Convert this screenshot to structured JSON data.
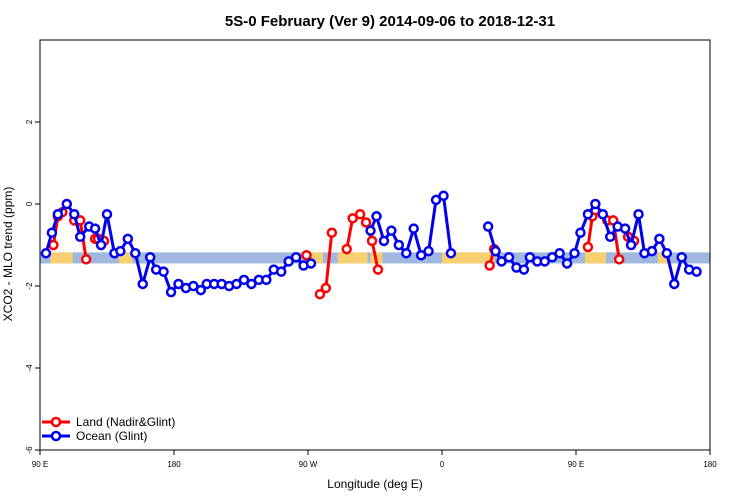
{
  "chart_data": {
    "type": "line",
    "title": "5S-0 February (Ver 9)   2014-09-06 to 2018-12-31",
    "xlabel": "Longitude (deg E)",
    "ylabel": "XCO2 - MLO trend (ppm)",
    "xlim": [
      90,
      540
    ],
    "ylim": [
      -6,
      4
    ],
    "xticks": [
      {
        "value": 90,
        "label": "90 E"
      },
      {
        "value": 180,
        "label": "180"
      },
      {
        "value": 270,
        "label": "90 W"
      },
      {
        "value": 360,
        "label": "0"
      },
      {
        "value": 450,
        "label": "90 E"
      },
      {
        "value": 540,
        "label": "180"
      }
    ],
    "yticks": [
      {
        "value": -6,
        "label": "-6"
      },
      {
        "value": -4,
        "label": "-4"
      },
      {
        "value": -2,
        "label": "-2"
      },
      {
        "value": 0,
        "label": "0"
      },
      {
        "value": 2,
        "label": "2"
      }
    ],
    "colors": {
      "land": "#ff0000",
      "ocean": "#0000ee",
      "band_ocean": "#a0b8e0",
      "band_land": "#f8d070"
    },
    "band": {
      "ymin": -1.45,
      "ymax": -1.18
    },
    "land_spans": [
      [
        97,
        112
      ],
      [
        143,
        152
      ],
      [
        270,
        280
      ],
      [
        290,
        310
      ],
      [
        312,
        320
      ],
      [
        360,
        395
      ],
      [
        456,
        470
      ],
      [
        505,
        512
      ]
    ],
    "legend": {
      "position": "bottom-left"
    },
    "series": [
      {
        "name": "Land (Nadir&Glint)",
        "color": "#ff0000",
        "segments": [
          [
            [
              99,
              -1.0
            ],
            [
              102,
              -0.3
            ],
            [
              105,
              -0.2
            ]
          ],
          [
            [
              113,
              -0.4
            ],
            [
              117,
              -0.4
            ],
            [
              121,
              -1.35
            ]
          ],
          [
            [
              127,
              -0.85
            ],
            [
              129,
              -0.85
            ],
            [
              133,
              -0.9
            ]
          ],
          [
            [
              269,
              -1.25
            ]
          ],
          [
            [
              278,
              -2.2
            ],
            [
              282,
              -2.05
            ],
            [
              286,
              -0.7
            ]
          ],
          [
            [
              296,
              -1.1
            ],
            [
              300,
              -0.35
            ],
            [
              305,
              -0.25
            ],
            [
              309,
              -0.45
            ],
            [
              313,
              -0.9
            ],
            [
              317,
              -1.6
            ]
          ],
          [
            [
              392,
              -1.5
            ],
            [
              395,
              -1.1
            ]
          ],
          [
            [
              458,
              -1.05
            ],
            [
              461,
              -0.3
            ],
            [
              463,
              -0.15
            ]
          ],
          [
            [
              471,
              -0.4
            ],
            [
              475,
              -0.4
            ],
            [
              479,
              -1.35
            ]
          ],
          [
            [
              485,
              -0.8
            ],
            [
              489,
              -0.9
            ]
          ]
        ]
      },
      {
        "name": "Ocean (Glint)",
        "color": "#0000ee",
        "segments": [
          [
            [
              94,
              -1.2
            ],
            [
              98,
              -0.7
            ],
            [
              102,
              -0.25
            ],
            [
              108,
              0.0
            ],
            [
              113,
              -0.25
            ],
            [
              117,
              -0.8
            ],
            [
              123,
              -0.55
            ],
            [
              127,
              -0.6
            ],
            [
              131,
              -1.0
            ],
            [
              135,
              -0.25
            ],
            [
              140,
              -1.2
            ],
            [
              144,
              -1.15
            ],
            [
              149,
              -0.85
            ],
            [
              154,
              -1.2
            ],
            [
              159,
              -1.95
            ],
            [
              164,
              -1.3
            ],
            [
              168,
              -1.6
            ],
            [
              173,
              -1.65
            ],
            [
              178,
              -2.15
            ],
            [
              183,
              -1.95
            ],
            [
              188,
              -2.05
            ],
            [
              193,
              -2.0
            ],
            [
              198,
              -2.1
            ],
            [
              202,
              -1.95
            ],
            [
              207,
              -1.95
            ],
            [
              212,
              -1.95
            ],
            [
              217,
              -2.0
            ],
            [
              222,
              -1.95
            ],
            [
              227,
              -1.85
            ],
            [
              232,
              -1.95
            ],
            [
              237,
              -1.85
            ],
            [
              242,
              -1.85
            ],
            [
              247,
              -1.6
            ],
            [
              252,
              -1.65
            ],
            [
              257,
              -1.4
            ],
            [
              262,
              -1.3
            ],
            [
              267,
              -1.5
            ],
            [
              272,
              -1.45
            ]
          ],
          [
            [
              312,
              -0.65
            ],
            [
              316,
              -0.3
            ],
            [
              321,
              -0.9
            ],
            [
              326,
              -0.65
            ],
            [
              331,
              -1.0
            ],
            [
              336,
              -1.2
            ],
            [
              341,
              -0.6
            ],
            [
              346,
              -1.25
            ],
            [
              351,
              -1.15
            ],
            [
              356,
              0.1
            ],
            [
              361,
              0.2
            ],
            [
              366,
              -1.2
            ]
          ],
          [
            [
              391,
              -0.55
            ],
            [
              396,
              -1.15
            ],
            [
              400,
              -1.4
            ],
            [
              405,
              -1.3
            ],
            [
              410,
              -1.55
            ],
            [
              415,
              -1.6
            ],
            [
              419,
              -1.3
            ],
            [
              424,
              -1.4
            ],
            [
              429,
              -1.4
            ],
            [
              434,
              -1.3
            ],
            [
              439,
              -1.2
            ],
            [
              444,
              -1.45
            ],
            [
              449,
              -1.2
            ],
            [
              453,
              -0.7
            ],
            [
              458,
              -0.25
            ],
            [
              463,
              0.0
            ],
            [
              468,
              -0.25
            ],
            [
              473,
              -0.8
            ],
            [
              478,
              -0.55
            ],
            [
              483,
              -0.6
            ],
            [
              487,
              -1.0
            ],
            [
              492,
              -0.25
            ],
            [
              496,
              -1.2
            ],
            [
              501,
              -1.15
            ],
            [
              506,
              -0.85
            ],
            [
              511,
              -1.2
            ],
            [
              516,
              -1.95
            ],
            [
              521,
              -1.3
            ],
            [
              526,
              -1.6
            ],
            [
              531,
              -1.65
            ]
          ]
        ]
      }
    ]
  }
}
